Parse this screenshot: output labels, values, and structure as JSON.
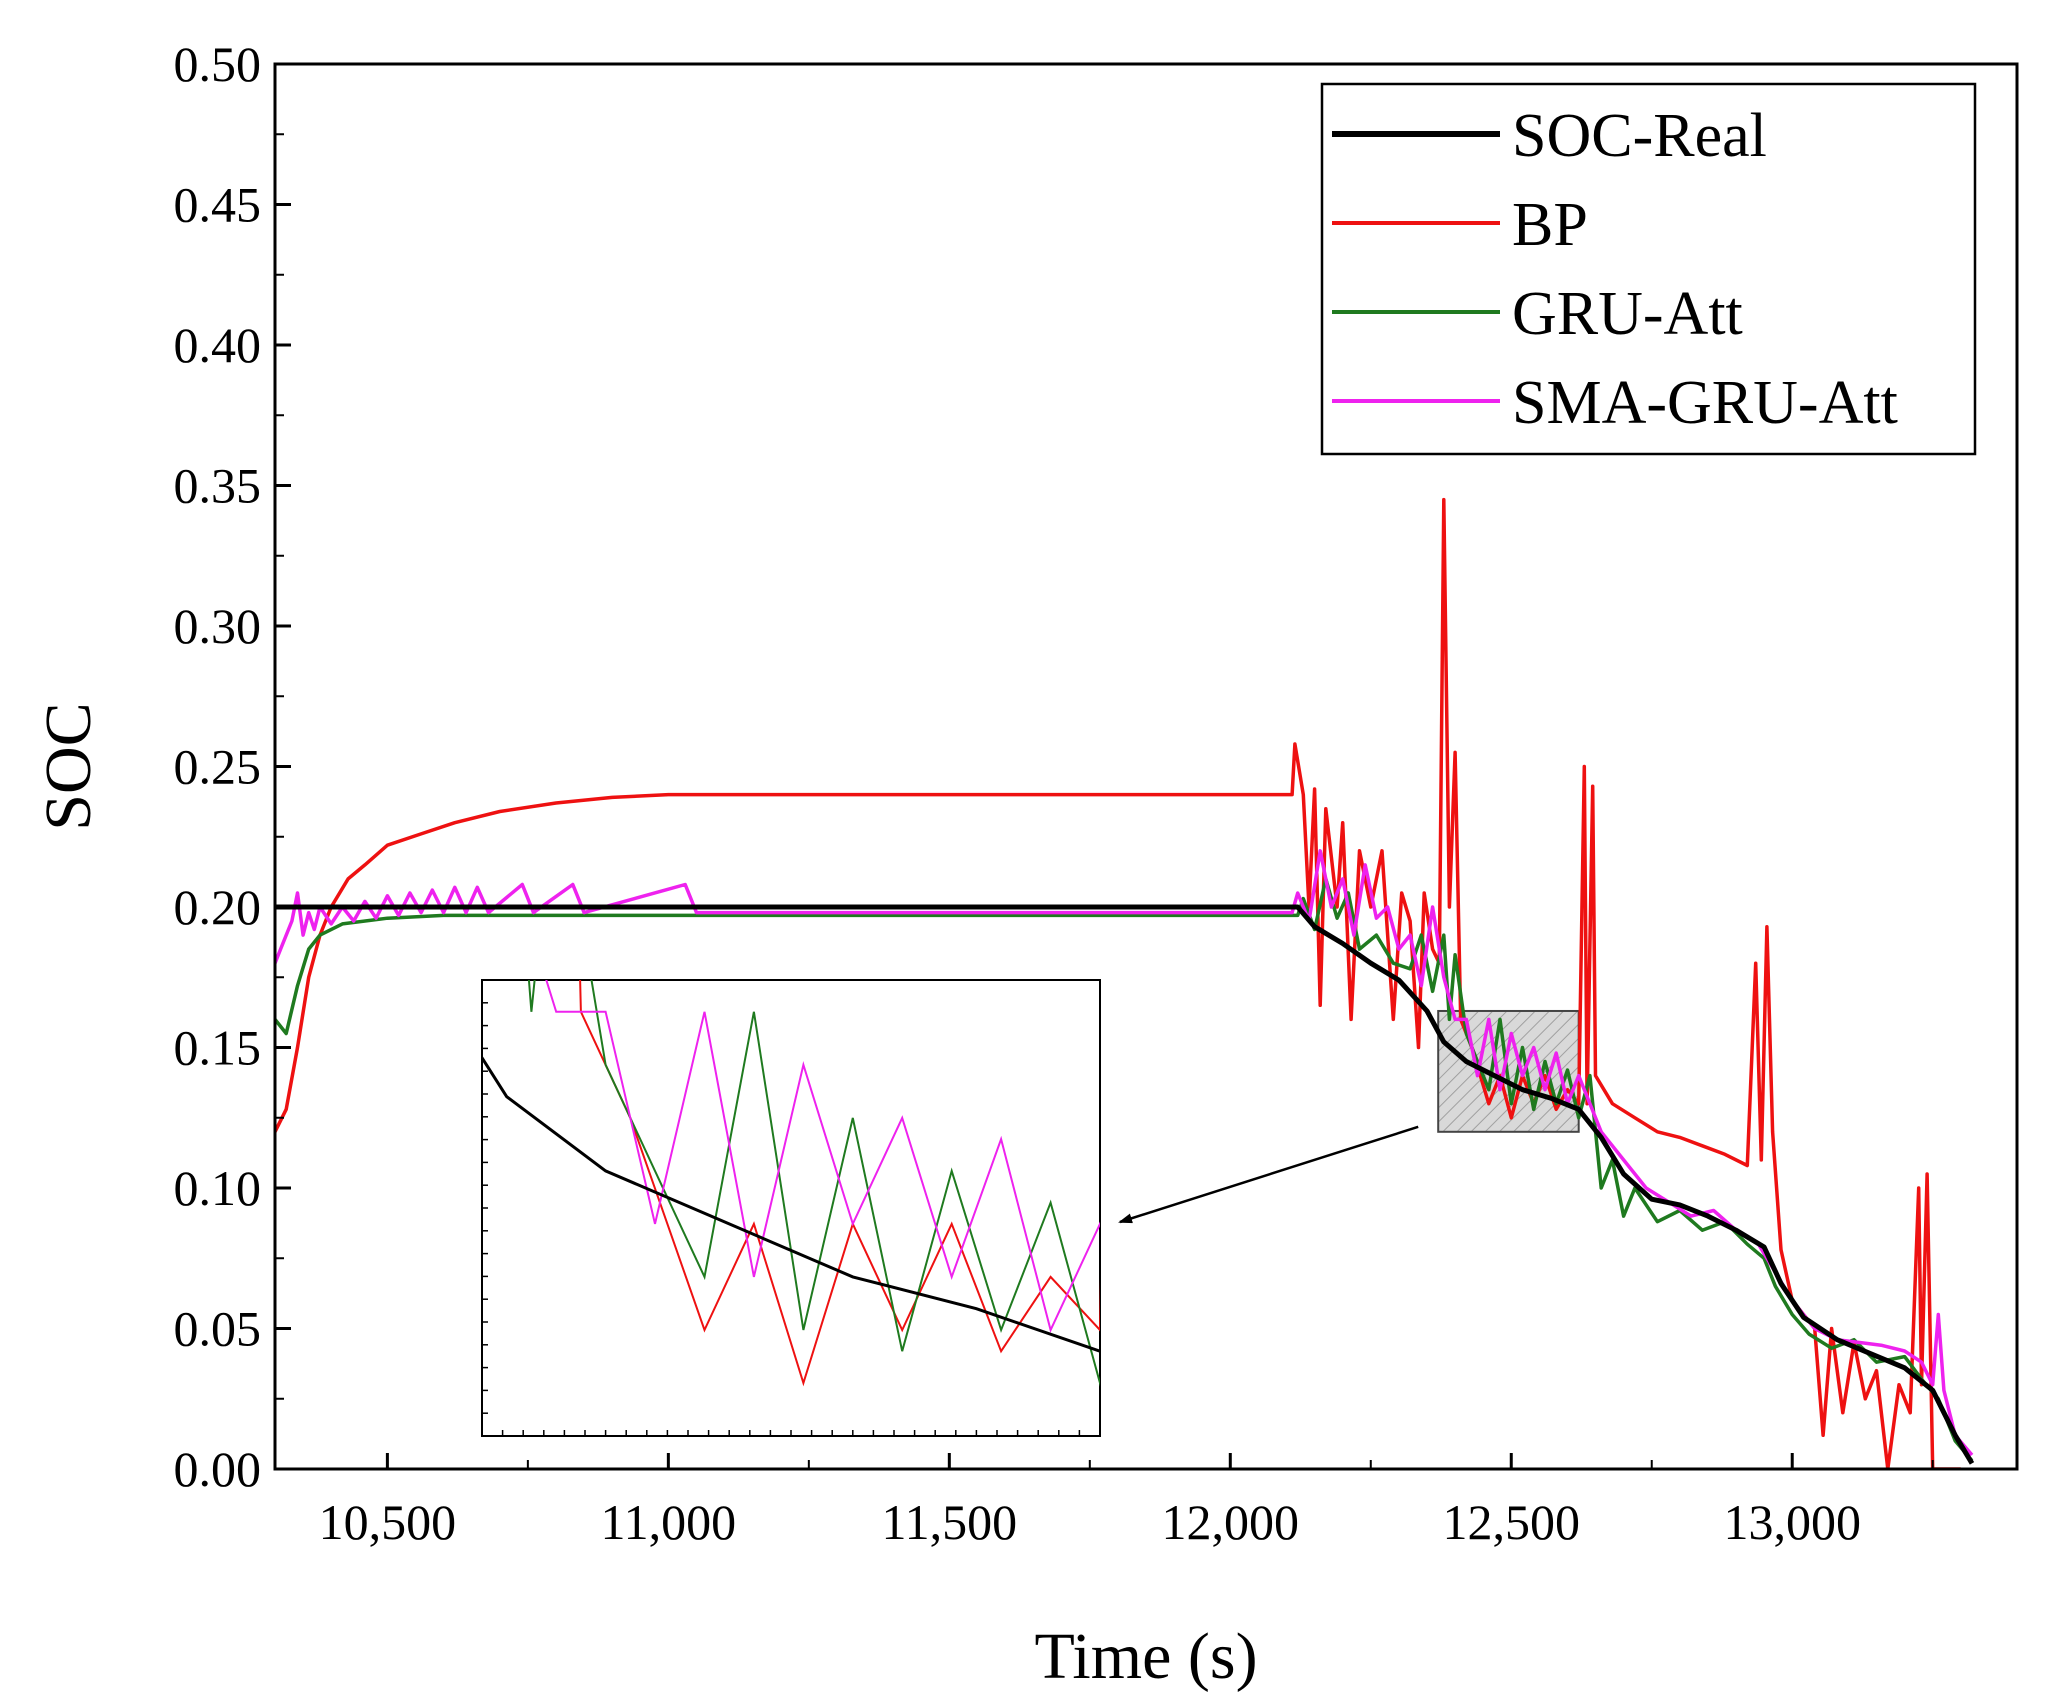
{
  "chart_data": {
    "type": "line",
    "title": "",
    "xlabel": "Time (s)",
    "ylabel": "SOC",
    "xlim": [
      10300,
      13400
    ],
    "ylim": [
      0.0,
      0.5
    ],
    "x_ticks": [
      10500,
      11000,
      11500,
      12000,
      12500,
      13000
    ],
    "x_tick_labels": [
      "10,500",
      "11,000",
      "11,500",
      "12,000",
      "12,500",
      "13,000"
    ],
    "y_ticks": [
      0.0,
      0.05,
      0.1,
      0.15,
      0.2,
      0.25,
      0.3,
      0.35,
      0.4,
      0.45,
      0.5
    ],
    "y_tick_labels": [
      "0.00",
      "0.05",
      "0.10",
      "0.15",
      "0.20",
      "0.25",
      "0.30",
      "0.35",
      "0.40",
      "0.45",
      "0.50"
    ],
    "legend": {
      "placement": "top-right"
    },
    "series": [
      {
        "name": "SOC-Real",
        "color": "#000000",
        "points": [
          [
            10300,
            0.2
          ],
          [
            12120,
            0.2
          ],
          [
            12150,
            0.193
          ],
          [
            12200,
            0.187
          ],
          [
            12250,
            0.18
          ],
          [
            12300,
            0.174
          ],
          [
            12350,
            0.163
          ],
          [
            12380,
            0.152
          ],
          [
            12420,
            0.145
          ],
          [
            12470,
            0.14
          ],
          [
            12520,
            0.135
          ],
          [
            12570,
            0.132
          ],
          [
            12620,
            0.128
          ],
          [
            12660,
            0.118
          ],
          [
            12700,
            0.105
          ],
          [
            12750,
            0.096
          ],
          [
            12800,
            0.094
          ],
          [
            12850,
            0.09
          ],
          [
            12900,
            0.085
          ],
          [
            12950,
            0.079
          ],
          [
            12980,
            0.066
          ],
          [
            13020,
            0.054
          ],
          [
            13080,
            0.046
          ],
          [
            13140,
            0.041
          ],
          [
            13200,
            0.036
          ],
          [
            13250,
            0.028
          ],
          [
            13290,
            0.012
          ],
          [
            13320,
            0.002
          ]
        ]
      },
      {
        "name": "BP",
        "color": "#ee1111",
        "points": [
          [
            10300,
            0.12
          ],
          [
            10320,
            0.128
          ],
          [
            10340,
            0.15
          ],
          [
            10360,
            0.175
          ],
          [
            10380,
            0.19
          ],
          [
            10400,
            0.2
          ],
          [
            10430,
            0.21
          ],
          [
            10460,
            0.215
          ],
          [
            10500,
            0.222
          ],
          [
            10560,
            0.226
          ],
          [
            10620,
            0.23
          ],
          [
            10700,
            0.234
          ],
          [
            10800,
            0.237
          ],
          [
            10900,
            0.239
          ],
          [
            11000,
            0.24
          ],
          [
            12110,
            0.24
          ],
          [
            12115,
            0.258
          ],
          [
            12130,
            0.24
          ],
          [
            12140,
            0.2
          ],
          [
            12150,
            0.242
          ],
          [
            12160,
            0.165
          ],
          [
            12170,
            0.235
          ],
          [
            12190,
            0.2
          ],
          [
            12200,
            0.23
          ],
          [
            12215,
            0.16
          ],
          [
            12230,
            0.22
          ],
          [
            12250,
            0.2
          ],
          [
            12270,
            0.22
          ],
          [
            12290,
            0.16
          ],
          [
            12305,
            0.205
          ],
          [
            12320,
            0.195
          ],
          [
            12335,
            0.15
          ],
          [
            12345,
            0.205
          ],
          [
            12360,
            0.185
          ],
          [
            12372,
            0.18
          ],
          [
            12380,
            0.345
          ],
          [
            12390,
            0.2
          ],
          [
            12400,
            0.255
          ],
          [
            12410,
            0.16
          ],
          [
            12430,
            0.15
          ],
          [
            12460,
            0.13
          ],
          [
            12480,
            0.14
          ],
          [
            12500,
            0.125
          ],
          [
            12520,
            0.14
          ],
          [
            12540,
            0.13
          ],
          [
            12560,
            0.14
          ],
          [
            12580,
            0.128
          ],
          [
            12600,
            0.135
          ],
          [
            12620,
            0.13
          ],
          [
            12630,
            0.25
          ],
          [
            12635,
            0.13
          ],
          [
            12645,
            0.243
          ],
          [
            12650,
            0.14
          ],
          [
            12680,
            0.13
          ],
          [
            12720,
            0.125
          ],
          [
            12760,
            0.12
          ],
          [
            12800,
            0.118
          ],
          [
            12840,
            0.115
          ],
          [
            12880,
            0.112
          ],
          [
            12920,
            0.108
          ],
          [
            12935,
            0.18
          ],
          [
            12945,
            0.11
          ],
          [
            12955,
            0.193
          ],
          [
            12965,
            0.12
          ],
          [
            12980,
            0.078
          ],
          [
            13000,
            0.06
          ],
          [
            13040,
            0.05
          ],
          [
            13055,
            0.012
          ],
          [
            13070,
            0.05
          ],
          [
            13090,
            0.02
          ],
          [
            13110,
            0.045
          ],
          [
            13130,
            0.025
          ],
          [
            13150,
            0.035
          ],
          [
            13170,
            0.0
          ],
          [
            13190,
            0.03
          ],
          [
            13210,
            0.02
          ],
          [
            13225,
            0.1
          ],
          [
            13230,
            0.03
          ],
          [
            13240,
            0.105
          ],
          [
            13250,
            0.0
          ],
          [
            13300,
            0.0
          ]
        ]
      },
      {
        "name": "GRU-Att",
        "color": "#1f7a1f",
        "points": [
          [
            10300,
            0.16
          ],
          [
            10320,
            0.155
          ],
          [
            10340,
            0.172
          ],
          [
            10360,
            0.185
          ],
          [
            10380,
            0.19
          ],
          [
            10420,
            0.194
          ],
          [
            10500,
            0.196
          ],
          [
            10600,
            0.197
          ],
          [
            11000,
            0.197
          ],
          [
            12120,
            0.197
          ],
          [
            12130,
            0.203
          ],
          [
            12150,
            0.192
          ],
          [
            12170,
            0.21
          ],
          [
            12190,
            0.196
          ],
          [
            12210,
            0.205
          ],
          [
            12230,
            0.185
          ],
          [
            12260,
            0.19
          ],
          [
            12290,
            0.18
          ],
          [
            12320,
            0.178
          ],
          [
            12340,
            0.19
          ],
          [
            12360,
            0.17
          ],
          [
            12380,
            0.19
          ],
          [
            12390,
            0.16
          ],
          [
            12400,
            0.183
          ],
          [
            12420,
            0.155
          ],
          [
            12440,
            0.145
          ],
          [
            12460,
            0.135
          ],
          [
            12480,
            0.16
          ],
          [
            12500,
            0.13
          ],
          [
            12520,
            0.15
          ],
          [
            12540,
            0.128
          ],
          [
            12560,
            0.145
          ],
          [
            12580,
            0.13
          ],
          [
            12600,
            0.142
          ],
          [
            12620,
            0.125
          ],
          [
            12640,
            0.14
          ],
          [
            12660,
            0.1
          ],
          [
            12680,
            0.11
          ],
          [
            12700,
            0.09
          ],
          [
            12720,
            0.1
          ],
          [
            12760,
            0.088
          ],
          [
            12800,
            0.092
          ],
          [
            12840,
            0.085
          ],
          [
            12880,
            0.088
          ],
          [
            12920,
            0.08
          ],
          [
            12950,
            0.075
          ],
          [
            12970,
            0.065
          ],
          [
            13000,
            0.055
          ],
          [
            13030,
            0.048
          ],
          [
            13070,
            0.043
          ],
          [
            13110,
            0.046
          ],
          [
            13150,
            0.038
          ],
          [
            13200,
            0.04
          ],
          [
            13230,
            0.032
          ],
          [
            13260,
            0.025
          ],
          [
            13290,
            0.01
          ],
          [
            13320,
            0.003
          ]
        ]
      },
      {
        "name": "SMA-GRU-Att",
        "color": "#ee22ee",
        "points": [
          [
            10300,
            0.18
          ],
          [
            10310,
            0.185
          ],
          [
            10330,
            0.195
          ],
          [
            10340,
            0.205
          ],
          [
            10350,
            0.19
          ],
          [
            10360,
            0.198
          ],
          [
            10370,
            0.192
          ],
          [
            10380,
            0.2
          ],
          [
            10400,
            0.194
          ],
          [
            10420,
            0.2
          ],
          [
            10440,
            0.195
          ],
          [
            10460,
            0.202
          ],
          [
            10480,
            0.196
          ],
          [
            10500,
            0.204
          ],
          [
            10520,
            0.197
          ],
          [
            10540,
            0.205
          ],
          [
            10560,
            0.198
          ],
          [
            10580,
            0.206
          ],
          [
            10600,
            0.198
          ],
          [
            10620,
            0.207
          ],
          [
            10640,
            0.198
          ],
          [
            10660,
            0.207
          ],
          [
            10680,
            0.198
          ],
          [
            10740,
            0.208
          ],
          [
            10760,
            0.198
          ],
          [
            10830,
            0.208
          ],
          [
            10850,
            0.198
          ],
          [
            11030,
            0.208
          ],
          [
            11050,
            0.198
          ],
          [
            12110,
            0.198
          ],
          [
            12120,
            0.205
          ],
          [
            12140,
            0.195
          ],
          [
            12160,
            0.22
          ],
          [
            12180,
            0.2
          ],
          [
            12200,
            0.21
          ],
          [
            12220,
            0.19
          ],
          [
            12240,
            0.215
          ],
          [
            12260,
            0.196
          ],
          [
            12280,
            0.2
          ],
          [
            12300,
            0.185
          ],
          [
            12320,
            0.19
          ],
          [
            12340,
            0.172
          ],
          [
            12360,
            0.2
          ],
          [
            12380,
            0.175
          ],
          [
            12400,
            0.16
          ],
          [
            12420,
            0.16
          ],
          [
            12440,
            0.14
          ],
          [
            12460,
            0.16
          ],
          [
            12480,
            0.135
          ],
          [
            12500,
            0.155
          ],
          [
            12520,
            0.14
          ],
          [
            12540,
            0.15
          ],
          [
            12560,
            0.135
          ],
          [
            12580,
            0.148
          ],
          [
            12600,
            0.13
          ],
          [
            12620,
            0.14
          ],
          [
            12640,
            0.13
          ],
          [
            12660,
            0.12
          ],
          [
            12700,
            0.11
          ],
          [
            12740,
            0.1
          ],
          [
            12780,
            0.095
          ],
          [
            12820,
            0.09
          ],
          [
            12860,
            0.092
          ],
          [
            12900,
            0.085
          ],
          [
            12940,
            0.08
          ],
          [
            12970,
            0.07
          ],
          [
            13000,
            0.06
          ],
          [
            13040,
            0.05
          ],
          [
            13080,
            0.046
          ],
          [
            13120,
            0.045
          ],
          [
            13160,
            0.044
          ],
          [
            13200,
            0.042
          ],
          [
            13230,
            0.038
          ],
          [
            13250,
            0.03
          ],
          [
            13260,
            0.055
          ],
          [
            13270,
            0.028
          ],
          [
            13290,
            0.012
          ],
          [
            13320,
            0.005
          ]
        ]
      }
    ],
    "annotations": [
      {
        "type": "zoom-box",
        "x_range": [
          12370,
          12620
        ],
        "y_range": [
          0.12,
          0.163
        ],
        "inset_placement": "lower-middle"
      }
    ]
  }
}
